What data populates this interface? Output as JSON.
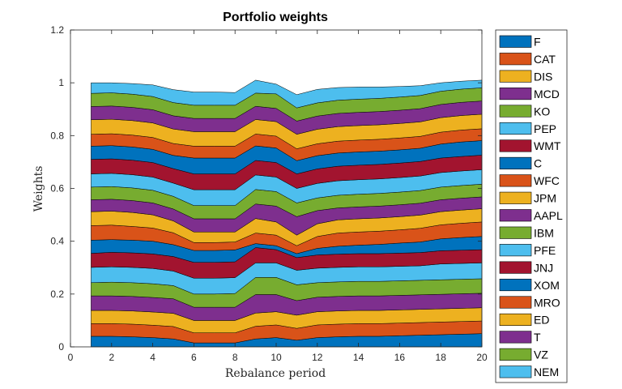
{
  "chart_data": {
    "type": "area",
    "stacked": true,
    "title": "Portfolio weights",
    "xlabel": "Rebalance period",
    "ylabel": "Weights",
    "xlim": [
      0,
      20
    ],
    "ylim": [
      0,
      1.2
    ],
    "xticks": [
      "0",
      "2",
      "4",
      "6",
      "8",
      "10",
      "12",
      "14",
      "16",
      "18",
      "20"
    ],
    "yticks": [
      "0",
      "0.2",
      "0.4",
      "0.6",
      "0.8",
      "1",
      "1.2"
    ],
    "grid": false,
    "legend_position": "outside-right",
    "x": [
      1,
      2,
      3,
      4,
      5,
      6,
      7,
      8,
      9,
      10,
      11,
      12,
      13,
      14,
      15,
      16,
      17,
      18,
      19,
      20
    ],
    "series": [
      {
        "name": "F",
        "color": "#0072BD",
        "values": [
          0.04,
          0.04,
          0.038,
          0.035,
          0.03,
          0.015,
          0.015,
          0.015,
          0.03,
          0.035,
          0.025,
          0.035,
          0.038,
          0.04,
          0.04,
          0.042,
          0.044,
          0.046,
          0.048,
          0.05
        ]
      },
      {
        "name": "CAT",
        "color": "#D95319",
        "values": [
          0.048,
          0.048,
          0.048,
          0.047,
          0.047,
          0.038,
          0.038,
          0.038,
          0.048,
          0.048,
          0.045,
          0.048,
          0.048,
          0.048,
          0.048,
          0.048,
          0.048,
          0.048,
          0.048,
          0.048
        ]
      },
      {
        "name": "DIS",
        "color": "#EDB120",
        "values": [
          0.05,
          0.05,
          0.05,
          0.05,
          0.05,
          0.047,
          0.047,
          0.047,
          0.05,
          0.05,
          0.05,
          0.05,
          0.05,
          0.05,
          0.05,
          0.05,
          0.05,
          0.05,
          0.05,
          0.05
        ]
      },
      {
        "name": "MCD",
        "color": "#7E2F8E",
        "values": [
          0.055,
          0.055,
          0.055,
          0.055,
          0.055,
          0.05,
          0.05,
          0.05,
          0.07,
          0.065,
          0.055,
          0.055,
          0.055,
          0.055,
          0.055,
          0.055,
          0.055,
          0.055,
          0.055,
          0.055
        ]
      },
      {
        "name": "KO",
        "color": "#77AC30",
        "values": [
          0.05,
          0.052,
          0.052,
          0.052,
          0.05,
          0.05,
          0.05,
          0.052,
          0.065,
          0.065,
          0.06,
          0.055,
          0.055,
          0.055,
          0.055,
          0.055,
          0.055,
          0.055,
          0.055,
          0.055
        ]
      },
      {
        "name": "PEP",
        "color": "#4DBEEE",
        "values": [
          0.058,
          0.058,
          0.058,
          0.058,
          0.055,
          0.06,
          0.06,
          0.06,
          0.055,
          0.055,
          0.055,
          0.055,
          0.055,
          0.055,
          0.055,
          0.055,
          0.055,
          0.06,
          0.06,
          0.06
        ]
      },
      {
        "name": "WMT",
        "color": "#A2142F",
        "values": [
          0.053,
          0.055,
          0.055,
          0.055,
          0.055,
          0.06,
          0.06,
          0.06,
          0.058,
          0.05,
          0.048,
          0.05,
          0.05,
          0.05,
          0.05,
          0.05,
          0.05,
          0.05,
          0.05,
          0.05
        ]
      },
      {
        "name": "C",
        "color": "#0072BD",
        "values": [
          0.05,
          0.048,
          0.048,
          0.048,
          0.045,
          0.045,
          0.045,
          0.045,
          0.015,
          0.015,
          0.015,
          0.025,
          0.03,
          0.032,
          0.035,
          0.038,
          0.04,
          0.045,
          0.048,
          0.05
        ]
      },
      {
        "name": "WFC",
        "color": "#D95319",
        "values": [
          0.055,
          0.055,
          0.052,
          0.05,
          0.045,
          0.03,
          0.03,
          0.03,
          0.04,
          0.04,
          0.03,
          0.045,
          0.05,
          0.05,
          0.05,
          0.05,
          0.052,
          0.053,
          0.054,
          0.055
        ]
      },
      {
        "name": "JPM",
        "color": "#EDB120",
        "values": [
          0.053,
          0.053,
          0.053,
          0.05,
          0.045,
          0.04,
          0.04,
          0.038,
          0.055,
          0.05,
          0.04,
          0.048,
          0.05,
          0.05,
          0.05,
          0.05,
          0.05,
          0.05,
          0.05,
          0.05
        ]
      },
      {
        "name": "AAPL",
        "color": "#7E2F8E",
        "values": [
          0.045,
          0.045,
          0.045,
          0.045,
          0.045,
          0.05,
          0.05,
          0.05,
          0.055,
          0.06,
          0.07,
          0.05,
          0.045,
          0.045,
          0.045,
          0.045,
          0.045,
          0.045,
          0.045,
          0.045
        ]
      },
      {
        "name": "IBM",
        "color": "#77AC30",
        "values": [
          0.048,
          0.048,
          0.048,
          0.048,
          0.048,
          0.05,
          0.05,
          0.05,
          0.055,
          0.055,
          0.052,
          0.048,
          0.048,
          0.048,
          0.048,
          0.048,
          0.048,
          0.048,
          0.048,
          0.048
        ]
      },
      {
        "name": "PFE",
        "color": "#4DBEEE",
        "values": [
          0.05,
          0.05,
          0.05,
          0.05,
          0.05,
          0.06,
          0.06,
          0.06,
          0.055,
          0.055,
          0.055,
          0.055,
          0.055,
          0.055,
          0.055,
          0.055,
          0.055,
          0.055,
          0.055,
          0.055
        ]
      },
      {
        "name": "JNJ",
        "color": "#A2142F",
        "values": [
          0.055,
          0.055,
          0.055,
          0.055,
          0.055,
          0.06,
          0.06,
          0.06,
          0.055,
          0.055,
          0.055,
          0.055,
          0.055,
          0.055,
          0.055,
          0.055,
          0.055,
          0.055,
          0.055,
          0.055
        ]
      },
      {
        "name": "XOM",
        "color": "#0072BD",
        "values": [
          0.05,
          0.05,
          0.05,
          0.05,
          0.05,
          0.06,
          0.06,
          0.06,
          0.055,
          0.055,
          0.05,
          0.05,
          0.05,
          0.05,
          0.05,
          0.05,
          0.05,
          0.053,
          0.055,
          0.055
        ]
      },
      {
        "name": "MRO",
        "color": "#D95319",
        "values": [
          0.045,
          0.045,
          0.045,
          0.045,
          0.045,
          0.045,
          0.045,
          0.045,
          0.045,
          0.045,
          0.045,
          0.045,
          0.045,
          0.045,
          0.045,
          0.045,
          0.045,
          0.045,
          0.045,
          0.045
        ]
      },
      {
        "name": "ED",
        "color": "#EDB120",
        "values": [
          0.055,
          0.055,
          0.055,
          0.055,
          0.055,
          0.055,
          0.055,
          0.055,
          0.055,
          0.055,
          0.055,
          0.055,
          0.055,
          0.055,
          0.055,
          0.055,
          0.055,
          0.055,
          0.055,
          0.055
        ]
      },
      {
        "name": "T",
        "color": "#7E2F8E",
        "values": [
          0.05,
          0.05,
          0.05,
          0.05,
          0.05,
          0.05,
          0.05,
          0.05,
          0.05,
          0.05,
          0.05,
          0.05,
          0.05,
          0.05,
          0.05,
          0.05,
          0.05,
          0.05,
          0.05,
          0.05
        ]
      },
      {
        "name": "VZ",
        "color": "#77AC30",
        "values": [
          0.05,
          0.05,
          0.05,
          0.05,
          0.05,
          0.05,
          0.05,
          0.05,
          0.05,
          0.055,
          0.05,
          0.05,
          0.05,
          0.05,
          0.05,
          0.05,
          0.05,
          0.05,
          0.05,
          0.05
        ]
      },
      {
        "name": "NEM",
        "color": "#4DBEEE",
        "values": [
          0.04,
          0.038,
          0.04,
          0.044,
          0.049,
          0.05,
          0.05,
          0.048,
          0.049,
          0.037,
          0.05,
          0.051,
          0.048,
          0.046,
          0.043,
          0.04,
          0.037,
          0.032,
          0.03,
          0.029
        ]
      }
    ]
  }
}
